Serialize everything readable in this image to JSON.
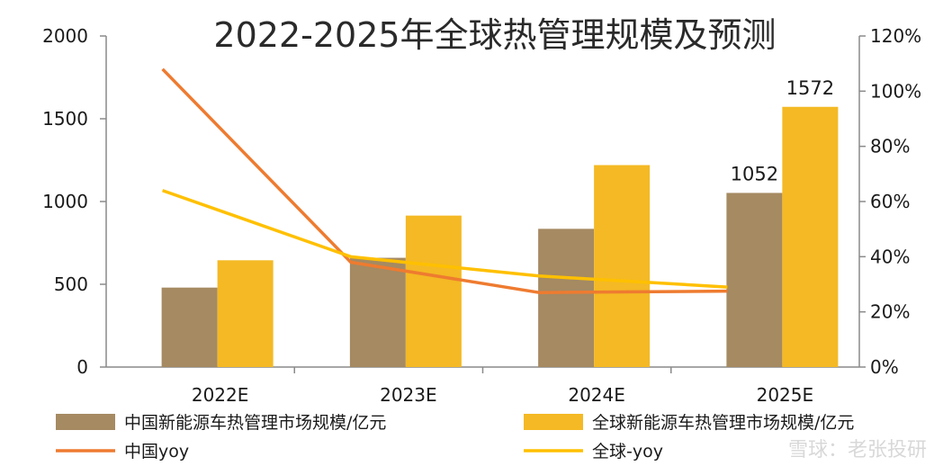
{
  "chart_data": {
    "type": "bar",
    "title": "2022-2025年全球热管理规模及预测",
    "categories": [
      "2022E",
      "2023E",
      "2024E",
      "2025E"
    ],
    "series": [
      {
        "name": "中国新能源车热管理市场规模/亿元",
        "kind": "bar",
        "axis": "left",
        "color": "#a58a62",
        "values": [
          480,
          660,
          835,
          1052
        ]
      },
      {
        "name": "全球新能源车热管理市场规模/亿元",
        "kind": "bar",
        "axis": "left",
        "color": "#f4b924",
        "values": [
          645,
          915,
          1220,
          1572
        ]
      },
      {
        "name": "中国yoy",
        "kind": "line",
        "axis": "right",
        "color": "#ee7b30",
        "values": [
          108,
          38,
          27,
          27.5
        ]
      },
      {
        "name": "全球-yoy",
        "kind": "line",
        "axis": "right",
        "color": "#ffc000",
        "values": [
          64,
          40,
          33,
          29
        ]
      }
    ],
    "data_labels": [
      {
        "series": 0,
        "index": 3,
        "text": "1052"
      },
      {
        "series": 1,
        "index": 3,
        "text": "1572"
      }
    ],
    "y_left": {
      "min": 0,
      "max": 2000,
      "ticks": [
        "0",
        "500",
        "1000",
        "1500",
        "2000"
      ]
    },
    "y_right": {
      "min": 0,
      "max": 120,
      "ticks": [
        "0%",
        "20%",
        "40%",
        "60%",
        "80%",
        "100%",
        "120%"
      ]
    },
    "grid": false,
    "legend_position": "bottom"
  },
  "watermark": "雪球：老张投研"
}
